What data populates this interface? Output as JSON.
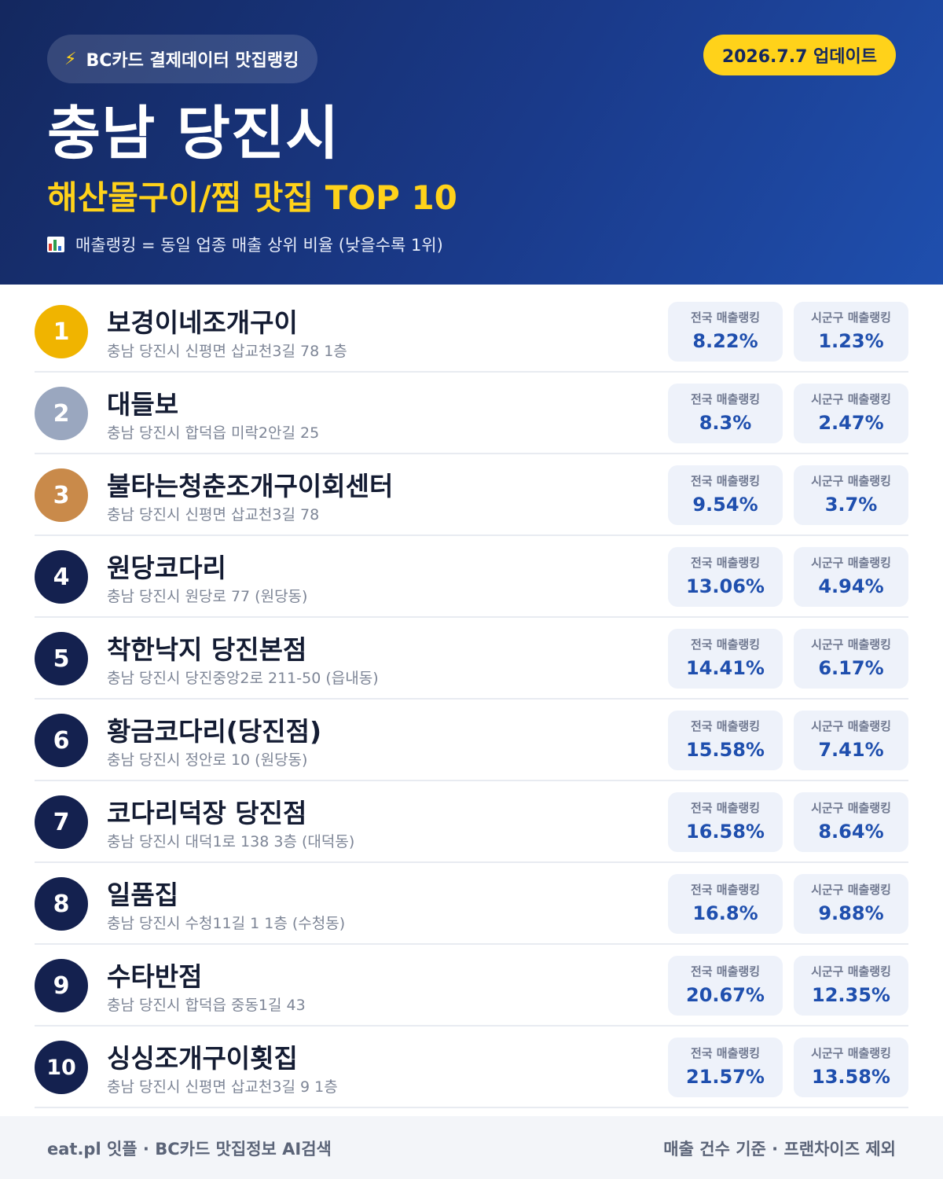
{
  "header": {
    "source_label": "BC카드 결제데이터 맛집랭킹",
    "update_label": "2026.7.7 업데이트",
    "region": "충남 당진시",
    "category": "해산물구이/찜 맛집 TOP 10",
    "legend_note": "매출랭킹 = 동일 업종 매출 상위 비율 (낮을수록 1위)",
    "icons": {
      "source": "lightning-icon",
      "legend": "bar-chart-icon"
    },
    "colors": {
      "accent": "#ffd21a",
      "background": "#1a3a8a"
    }
  },
  "labels": {
    "national": "전국 매출랭킹",
    "local": "시군구 매출랭킹"
  },
  "restaurants": [
    {
      "rank": "1",
      "name": "보경이네조개구이",
      "address": "충남 당진시 신평면 삽교천3길 78 1층",
      "national": "8.22%",
      "local": "1.23%"
    },
    {
      "rank": "2",
      "name": "대들보",
      "address": "충남 당진시 합덕읍 미락2안길 25",
      "national": "8.3%",
      "local": "2.47%"
    },
    {
      "rank": "3",
      "name": "불타는청춘조개구이회센터",
      "address": "충남 당진시 신평면 삽교천3길 78",
      "national": "9.54%",
      "local": "3.7%"
    },
    {
      "rank": "4",
      "name": "원당코다리",
      "address": "충남 당진시 원당로 77 (원당동)",
      "national": "13.06%",
      "local": "4.94%"
    },
    {
      "rank": "5",
      "name": "착한낙지 당진본점",
      "address": "충남 당진시 당진중앙2로 211-50 (읍내동)",
      "national": "14.41%",
      "local": "6.17%"
    },
    {
      "rank": "6",
      "name": "황금코다리(당진점)",
      "address": "충남 당진시 정안로 10 (원당동)",
      "national": "15.58%",
      "local": "7.41%"
    },
    {
      "rank": "7",
      "name": "코다리덕장 당진점",
      "address": "충남 당진시 대덕1로 138 3층 (대덕동)",
      "national": "16.58%",
      "local": "8.64%"
    },
    {
      "rank": "8",
      "name": "일품집",
      "address": "충남 당진시 수청11길 1 1층 (수청동)",
      "national": "16.8%",
      "local": "9.88%"
    },
    {
      "rank": "9",
      "name": "수타반점",
      "address": "충남 당진시 합덕읍 중동1길 43",
      "national": "20.67%",
      "local": "12.35%"
    },
    {
      "rank": "10",
      "name": "싱싱조개구이횟집",
      "address": "충남 당진시 신평면 삽교천3길 9 1층",
      "national": "21.57%",
      "local": "13.58%"
    }
  ],
  "footer": {
    "left": "eat.pl 잇플 · BC카드 맛집정보 AI검색",
    "right": "매출 건수 기준 · 프랜차이즈 제외"
  }
}
